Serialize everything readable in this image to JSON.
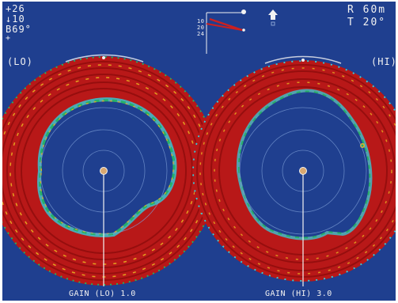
{
  "status": {
    "line1": "+26",
    "line2": "↓10",
    "line3": "B69°",
    "marker": "+"
  },
  "settings": {
    "range": "R  60m",
    "tilt": "T  20°"
  },
  "compass": {
    "tick_labels": [
      "10",
      "20",
      "24"
    ]
  },
  "panels": {
    "left": {
      "tag": "(LO)",
      "gain_label": "GAIN  (LO)   1.0"
    },
    "right": {
      "tag": "(HI)",
      "gain_label": "GAIN  (HI)   3.0"
    }
  },
  "colors": {
    "background": "#1f3f8f",
    "echo_strong": "#b81818",
    "echo_dark": "#8e0c0c",
    "echo_mid": "#e8b020",
    "echo_weak": "#22b060",
    "echo_faint": "#30d0e0",
    "ring": "#7fa0d8",
    "text": "#f2f2f2",
    "heading_line": "#cc2020"
  },
  "icons": {
    "own_ship": "ship-arrow-icon",
    "center": "own-ship-dot-icon"
  }
}
